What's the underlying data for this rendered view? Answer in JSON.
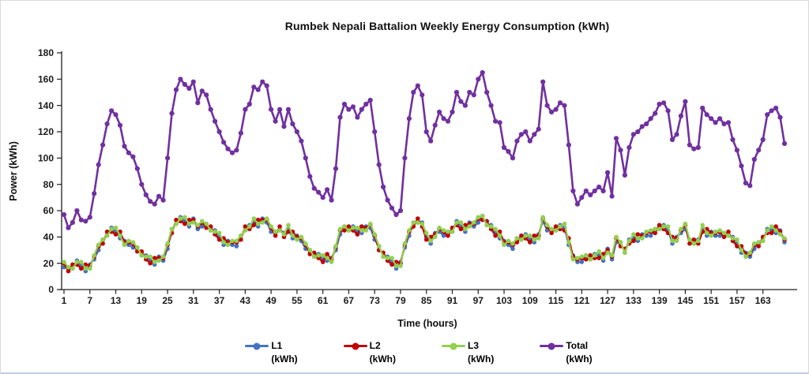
{
  "title": "Rumbek Nepali Battalion Weekly Energy Consumption (kWh)",
  "axes": {
    "y_label": "Power (kWh)",
    "x_label": "Time (hours)",
    "y_ticks": [
      0,
      20,
      40,
      60,
      80,
      100,
      120,
      140,
      160,
      180
    ],
    "x_ticks": [
      1,
      7,
      13,
      19,
      25,
      31,
      37,
      43,
      49,
      55,
      61,
      67,
      73,
      79,
      85,
      91,
      97,
      103,
      109,
      115,
      121,
      127,
      133,
      139,
      145,
      151,
      157,
      163
    ]
  },
  "chart_data": {
    "type": "line",
    "title": "Rumbek Nepali Battalion Weekly Energy Consumption (kWh)",
    "xlabel": "Time (hours)",
    "ylabel": "Power (kWh)",
    "ylim": [
      0,
      180
    ],
    "xlim": [
      1,
      168
    ],
    "x_start": 1,
    "x_step": 1,
    "grid": false,
    "legend_position": "bottom",
    "marker": "circle",
    "series": [
      {
        "id": "l1",
        "name": "L1 (kWh)",
        "legend": [
          "L1",
          "(kWh)"
        ],
        "color": "#4472C4",
        "values": [
          17,
          17,
          16,
          22,
          18,
          14,
          19,
          23,
          30,
          38,
          41,
          47,
          44,
          39,
          37,
          34,
          32,
          32,
          26,
          26,
          22,
          19,
          25,
          22,
          31,
          46,
          50,
          55,
          52,
          48,
          54,
          46,
          48,
          50,
          45,
          45,
          40,
          34,
          37,
          34,
          33,
          41,
          45,
          49,
          51,
          48,
          54,
          51,
          44,
          44,
          45,
          43,
          46,
          39,
          41,
          37,
          31,
          30,
          25,
          27,
          23,
          22,
          24,
          30,
          42,
          48,
          45,
          48,
          44,
          43,
          48,
          47,
          38,
          33,
          25,
          25,
          21,
          16,
          21,
          32,
          41,
          51,
          51,
          51,
          40,
          35,
          43,
          44,
          41,
          44,
          44,
          52,
          48,
          44,
          51,
          48,
          51,
          56,
          49,
          49,
          43,
          39,
          37,
          34,
          31,
          39,
          38,
          42,
          38,
          36,
          42,
          52,
          45,
          46,
          45,
          49,
          47,
          34,
          26,
          21,
          21,
          26,
          23,
          27,
          26,
          22,
          31,
          23,
          36,
          36,
          28,
          38,
          39,
          37,
          42,
          41,
          41,
          46,
          46,
          49,
          45,
          35,
          40,
          43,
          46,
          38,
          35,
          38,
          46,
          41,
          44,
          41,
          41,
          43,
          41,
          40,
          35,
          28,
          28,
          25,
          31,
          36,
          37,
          46,
          45,
          43,
          45,
          36
        ]
      },
      {
        "id": "l2",
        "name": "L2 (kWh)",
        "legend": [
          "L2",
          "(kWh)"
        ],
        "color": "#C00000",
        "values": [
          20,
          14,
          19,
          19,
          16,
          19,
          18,
          25,
          33,
          35,
          44,
          44,
          42,
          44,
          36,
          36,
          35,
          29,
          29,
          23,
          20,
          24,
          24,
          24,
          34,
          43,
          53,
          52,
          50,
          53,
          53,
          48,
          51,
          47,
          48,
          42,
          38,
          39,
          36,
          36,
          36,
          38,
          48,
          46,
          49,
          53,
          53,
          53,
          47,
          41,
          48,
          40,
          44,
          44,
          40,
          39,
          34,
          27,
          28,
          24,
          21,
          27,
          23,
          32,
          45,
          45,
          48,
          45,
          42,
          48,
          47,
          49,
          41,
          30,
          28,
          22,
          19,
          21,
          20,
          34,
          44,
          48,
          54,
          48,
          38,
          40,
          42,
          46,
          44,
          41,
          47,
          49,
          46,
          49,
          50,
          50,
          54,
          53,
          52,
          46,
          41,
          44,
          36,
          36,
          34,
          36,
          41,
          39,
          36,
          41,
          41,
          54,
          48,
          43,
          48,
          46,
          45,
          39,
          25,
          23,
          24,
          23,
          26,
          24,
          24,
          27,
          30,
          25,
          39,
          33,
          31,
          35,
          37,
          42,
          41,
          43,
          44,
          43,
          49,
          46,
          43,
          40,
          39,
          45,
          49,
          35,
          38,
          35,
          44,
          46,
          43,
          43,
          44,
          40,
          44,
          37,
          33,
          33,
          27,
          27,
          34,
          33,
          40,
          43,
          43,
          48,
          44,
          38
        ]
      },
      {
        "id": "l3",
        "name": "L3 (kWh)",
        "legend": [
          "L3",
          "(kWh)"
        ],
        "color": "#92D050",
        "values": [
          21,
          17,
          16,
          21,
          21,
          16,
          16,
          26,
          34,
          38,
          41,
          46,
          47,
          41,
          34,
          37,
          36,
          32,
          26,
          25,
          25,
          21,
          22,
          25,
          35,
          46,
          50,
          54,
          55,
          50,
          51,
          49,
          52,
          50,
          45,
          44,
          43,
          36,
          34,
          37,
          37,
          41,
          45,
          48,
          54,
          50,
          51,
          54,
          48,
          44,
          45,
          42,
          49,
          41,
          38,
          40,
          35,
          30,
          25,
          26,
          26,
          24,
          21,
          33,
          46,
          48,
          45,
          47,
          47,
          45,
          45,
          50,
          42,
          33,
          25,
          24,
          24,
          18,
          18,
          35,
          45,
          51,
          51,
          50,
          43,
          37,
          40,
          47,
          45,
          44,
          44,
          51,
          51,
          46,
          48,
          51,
          55,
          56,
          49,
          48,
          46,
          41,
          34,
          37,
          35,
          39,
          38,
          41,
          41,
          38,
          39,
          55,
          49,
          46,
          45,
          48,
          50,
          36,
          23,
          24,
          25,
          26,
          23,
          26,
          29,
          24,
          28,
          26,
          40,
          36,
          28,
          37,
          42,
          39,
          39,
          44,
          45,
          46,
          46,
          48,
          48,
          37,
          37,
          46,
          50,
          38,
          35,
          37,
          49,
          43,
          41,
          44,
          45,
          43,
          41,
          39,
          38,
          30,
          25,
          28,
          35,
          36,
          37,
          45,
          48,
          45,
          42,
          39
        ]
      },
      {
        "id": "total",
        "name": "Total (kWh)",
        "legend": [
          "Total",
          "(kWh)"
        ],
        "color": "#7030A0",
        "values": [
          57,
          47,
          51,
          60,
          53,
          52,
          55,
          73,
          95,
          110,
          126,
          136,
          133,
          125,
          109,
          104,
          101,
          92,
          80,
          72,
          67,
          65,
          71,
          68,
          100,
          134,
          152,
          160,
          156,
          153,
          158,
          142,
          151,
          148,
          137,
          128,
          120,
          112,
          107,
          104,
          106,
          119,
          137,
          141,
          154,
          152,
          158,
          155,
          137,
          128,
          137,
          124,
          137,
          126,
          120,
          113,
          100,
          86,
          77,
          74,
          70,
          76,
          68,
          92,
          131,
          141,
          137,
          139,
          131,
          137,
          141,
          144,
          120,
          95,
          78,
          68,
          62,
          57,
          60,
          100,
          130,
          150,
          155,
          148,
          120,
          113,
          125,
          135,
          130,
          128,
          135,
          150,
          143,
          140,
          150,
          148,
          160,
          165,
          150,
          140,
          128,
          127,
          108,
          105,
          100,
          113,
          118,
          120,
          113,
          118,
          122,
          158,
          140,
          135,
          137,
          142,
          140,
          110,
          75,
          65,
          70,
          75,
          72,
          75,
          78,
          75,
          89,
          71,
          115,
          106,
          87,
          108,
          118,
          120,
          124,
          126,
          130,
          134,
          141,
          142,
          136,
          114,
          118,
          132,
          143,
          110,
          107,
          108,
          138,
          133,
          130,
          127,
          130,
          126,
          127,
          114,
          106,
          94,
          81,
          79,
          99,
          106,
          114,
          133,
          136,
          138,
          131,
          111
        ]
      }
    ]
  }
}
